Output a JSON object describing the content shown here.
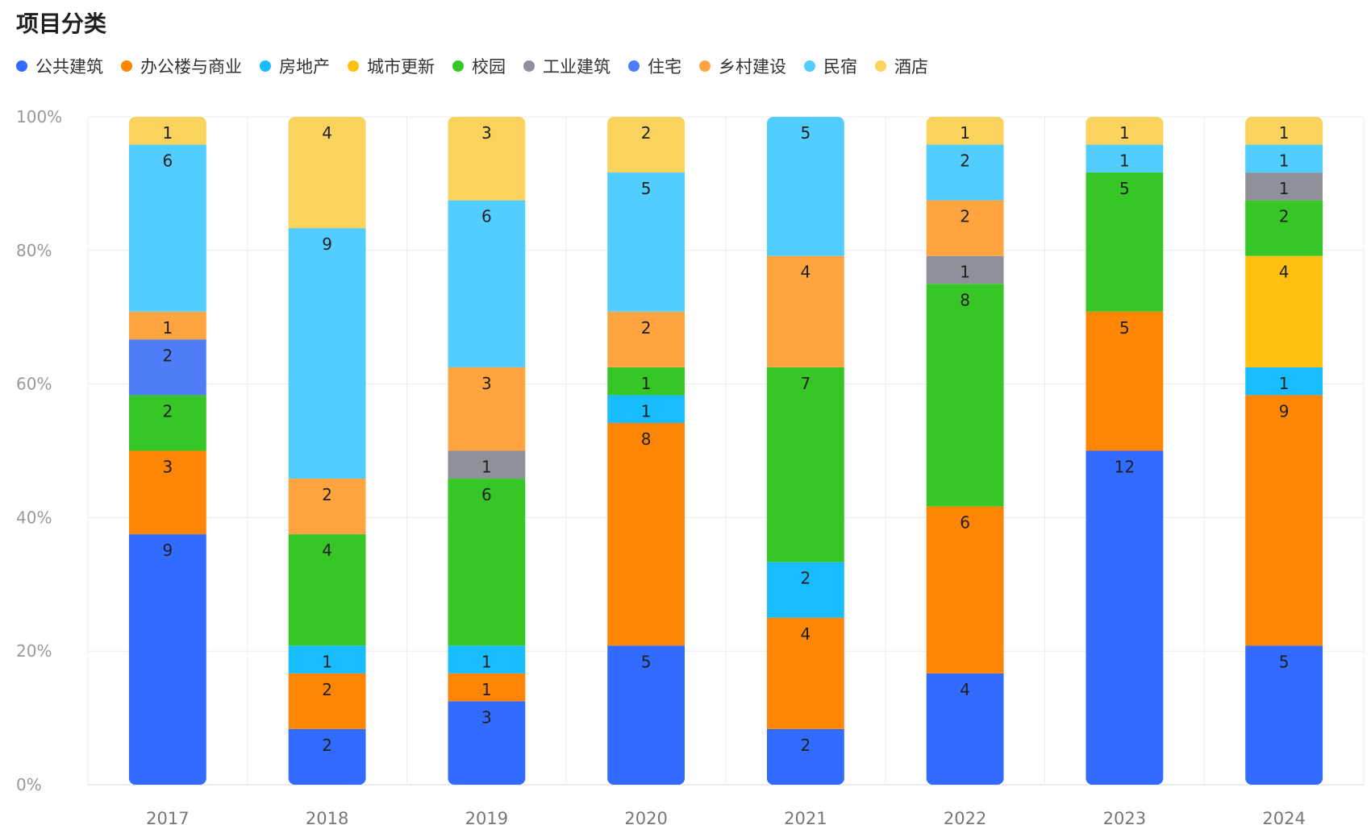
{
  "chart_data": {
    "type": "bar",
    "stacked": "percent",
    "title": "项目分类",
    "xlabel": "",
    "ylabel": "",
    "categories": [
      "2017",
      "2018",
      "2019",
      "2020",
      "2021",
      "2022",
      "2023",
      "2024"
    ],
    "y_ticks": [
      "0%",
      "20%",
      "40%",
      "60%",
      "80%",
      "100%"
    ],
    "ylim": [
      0,
      100
    ],
    "grid": true,
    "legend_position": "top-left",
    "series": [
      {
        "name": "公共建筑",
        "color": "#316BFF",
        "values": [
          9,
          2,
          3,
          5,
          2,
          4,
          12,
          5
        ]
      },
      {
        "name": "办公楼与商业",
        "color": "#FF8505",
        "values": [
          3,
          2,
          1,
          8,
          4,
          6,
          5,
          9
        ]
      },
      {
        "name": "房地产",
        "color": "#17BDFF",
        "values": [
          0,
          1,
          1,
          1,
          2,
          0,
          0,
          1
        ]
      },
      {
        "name": "城市更新",
        "color": "#FFC00F",
        "values": [
          0,
          0,
          0,
          0,
          0,
          0,
          0,
          4
        ]
      },
      {
        "name": "校园",
        "color": "#36C625",
        "values": [
          2,
          4,
          6,
          1,
          7,
          8,
          5,
          2
        ]
      },
      {
        "name": "工业建筑",
        "color": "#8E919C",
        "values": [
          0,
          0,
          1,
          0,
          0,
          1,
          0,
          1
        ]
      },
      {
        "name": "住宅",
        "color": "#4F7DF7",
        "values": [
          2,
          0,
          0,
          0,
          0,
          0,
          0,
          0
        ]
      },
      {
        "name": "乡村建设",
        "color": "#FFA43F",
        "values": [
          1,
          2,
          3,
          2,
          4,
          2,
          0,
          0
        ]
      },
      {
        "name": "民宿",
        "color": "#52CDFF",
        "values": [
          6,
          9,
          6,
          5,
          5,
          2,
          1,
          1
        ]
      },
      {
        "name": "酒店",
        "color": "#F9D35B",
        "values": [
          1,
          4,
          3,
          2,
          0,
          1,
          1,
          1
        ]
      }
    ]
  }
}
